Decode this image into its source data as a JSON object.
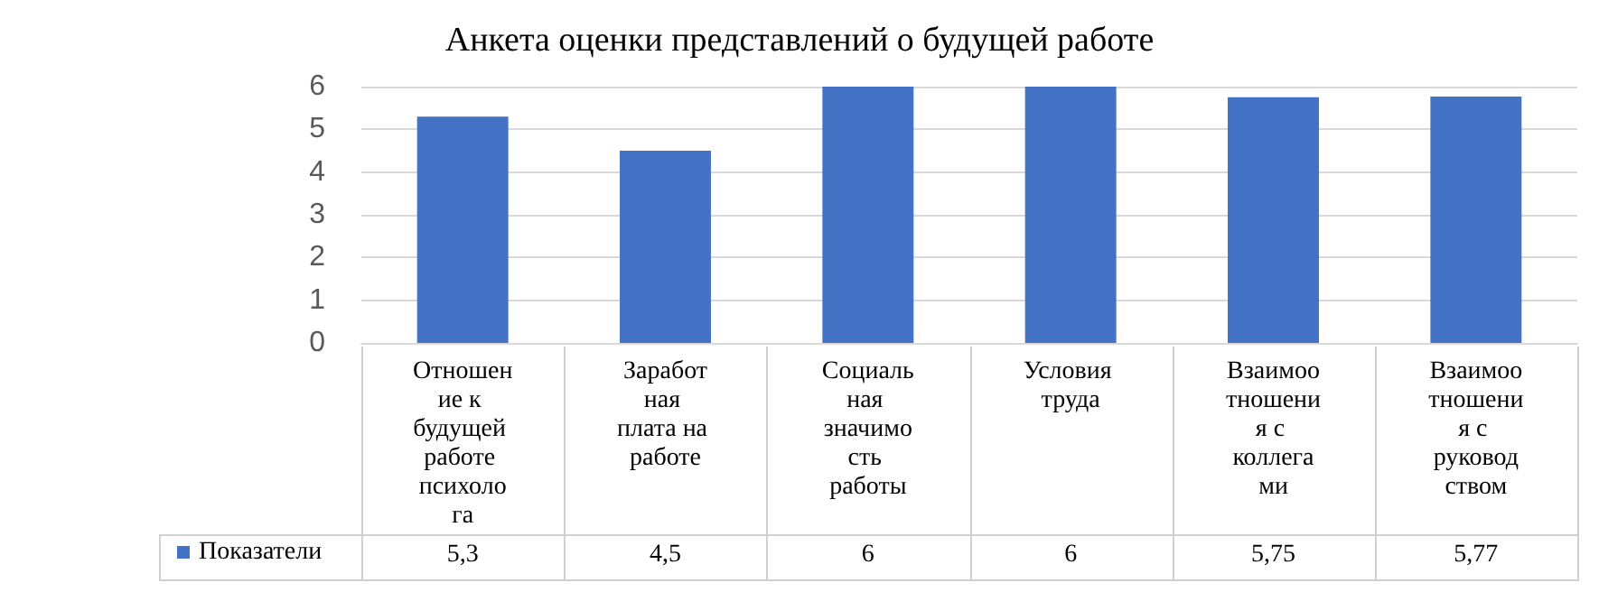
{
  "chart_data": {
    "type": "bar",
    "title": "Анкета оценки представлений о будущей работе",
    "categories": [
      "Отношение к будущей работе психолога",
      "Заработная плата на работе",
      "Социальная значимость работы",
      "Условия труда",
      "Взаимоотношения с коллегами",
      "Взаимоотношения с руководством"
    ],
    "series": [
      {
        "name": "Показатели",
        "color": "#4472c4",
        "values": [
          5.3,
          4.5,
          6,
          6,
          5.75,
          5.77
        ],
        "value_labels": [
          "5,3",
          "4,5",
          "6",
          "6",
          "5,75",
          "5,77"
        ]
      }
    ],
    "ylim": [
      0,
      6
    ],
    "yticks": [
      0,
      1,
      2,
      3,
      4,
      5,
      6
    ],
    "grid": "y",
    "legend": "bottom left"
  }
}
